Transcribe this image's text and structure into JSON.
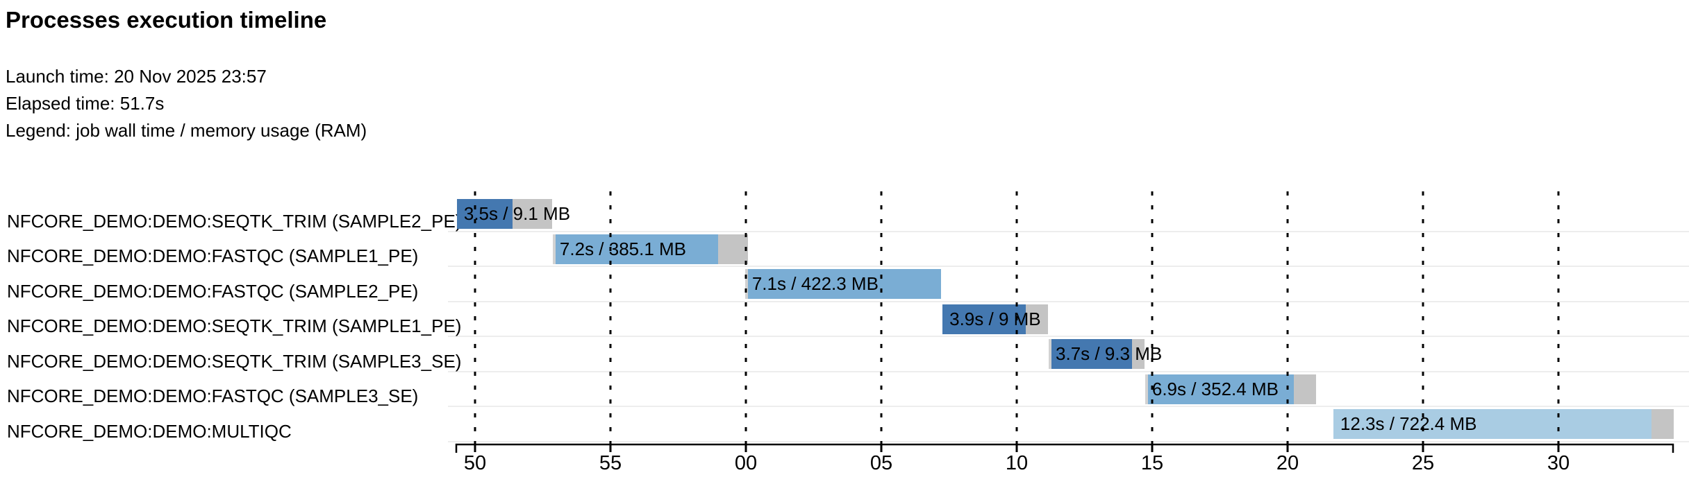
{
  "header": {
    "title": "Processes execution timeline",
    "launch_line": "Launch time: 20 Nov 2025 23:57",
    "elapsed_line": "Elapsed time: 51.7s",
    "legend_line": "Legend: job wall time / memory usage (RAM)"
  },
  "colors": {
    "run_shades": {
      "dark": "#4478b0",
      "medium": "#7aadd4",
      "pale": "#a9cce3"
    },
    "overhead_gray": "#c4c4c4",
    "lead_gray": "#d2d2d2",
    "row_separator": "#ededed",
    "axis": "#000000",
    "grid": "#000000",
    "text": "#000000",
    "background": "#ffffff"
  },
  "chart_data": {
    "type": "timeline",
    "title": "Processes execution timeline",
    "launch_time": "20 Nov 2025 23:57",
    "elapsed_time": "51.7s",
    "legend": "job wall time / memory usage (RAM)",
    "x_axis": {
      "tick_labels": [
        "50",
        "55",
        "00",
        "05",
        "10",
        "15",
        "20",
        "25",
        "30"
      ],
      "tick_interval_s": 5,
      "domain_s": [
        -0.72,
        44.25
      ],
      "note": "seconds of clock time wrapping from :50 through the next minute"
    },
    "grid": "vertical dashed lines at each tick",
    "legend_position": "header text line",
    "tasks": [
      {
        "process": "NFCORE_DEMO:DEMO:SEQTK_TRIM (SAMPLE2_PE)",
        "bar_label": "3.5s / 9.1 MB",
        "wall_time": "3.5s",
        "memory_ram": "9.1 MB",
        "shade": "dark",
        "start_s": -0.67,
        "segments": [
          {
            "kind": "run",
            "dur_s": 2.05
          },
          {
            "kind": "overhead",
            "dur_s": 1.46
          }
        ]
      },
      {
        "process": "NFCORE_DEMO:DEMO:FASTQC (SAMPLE1_PE)",
        "bar_label": "7.2s / 385.1 MB",
        "wall_time": "7.2s",
        "memory_ram": "385.1 MB",
        "shade": "medium",
        "start_s": 2.87,
        "segments": [
          {
            "kind": "lead",
            "dur_s": 0.1
          },
          {
            "kind": "run",
            "dur_s": 6.0
          },
          {
            "kind": "overhead",
            "dur_s": 1.1
          }
        ]
      },
      {
        "process": "NFCORE_DEMO:DEMO:FASTQC (SAMPLE2_PE)",
        "bar_label": "7.1s / 422.3 MB",
        "wall_time": "7.1s",
        "memory_ram": "422.3 MB",
        "shade": "medium",
        "start_s": 9.97,
        "segments": [
          {
            "kind": "lead",
            "dur_s": 0.1
          },
          {
            "kind": "run",
            "dur_s": 7.13
          }
        ]
      },
      {
        "process": "NFCORE_DEMO:DEMO:SEQTK_TRIM (SAMPLE1_PE)",
        "bar_label": "3.9s / 9 MB",
        "wall_time": "3.9s",
        "memory_ram": "9 MB",
        "shade": "dark",
        "start_s": 17.26,
        "segments": [
          {
            "kind": "run",
            "dur_s": 3.08
          },
          {
            "kind": "overhead",
            "dur_s": 0.82
          }
        ]
      },
      {
        "process": "NFCORE_DEMO:DEMO:SEQTK_TRIM (SAMPLE3_SE)",
        "bar_label": "3.7s / 9.3 MB",
        "wall_time": "3.7s",
        "memory_ram": "9.3 MB",
        "shade": "dark",
        "start_s": 21.18,
        "segments": [
          {
            "kind": "lead",
            "dur_s": 0.1
          },
          {
            "kind": "run",
            "dur_s": 2.97
          },
          {
            "kind": "overhead",
            "dur_s": 0.46
          }
        ]
      },
      {
        "process": "NFCORE_DEMO:DEMO:FASTQC (SAMPLE3_SE)",
        "bar_label": "6.9s / 352.4 MB",
        "wall_time": "6.9s",
        "memory_ram": "352.4 MB",
        "shade": "medium",
        "start_s": 24.74,
        "segments": [
          {
            "kind": "lead",
            "dur_s": 0.1
          },
          {
            "kind": "run",
            "dur_s": 5.38
          },
          {
            "kind": "overhead",
            "dur_s": 0.82
          }
        ]
      },
      {
        "process": "NFCORE_DEMO:DEMO:MULTIQC",
        "bar_label": "12.3s / 722.4 MB",
        "wall_time": "12.3s",
        "memory_ram": "722.4 MB",
        "shade": "pale",
        "start_s": 31.69,
        "segments": [
          {
            "kind": "run",
            "dur_s": 11.74
          },
          {
            "kind": "overhead",
            "dur_s": 0.82
          }
        ]
      }
    ]
  }
}
